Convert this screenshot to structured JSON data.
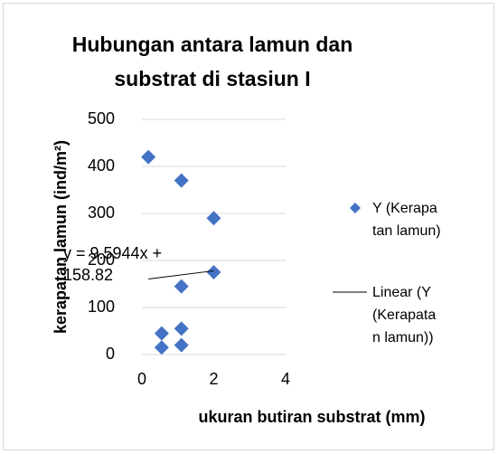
{
  "chart_data": {
    "type": "scatter",
    "title": "Hubungan antara lamun dan substrat di stasiun I",
    "xlabel": "ukuran butiran substrat (mm)",
    "ylabel": "kerapatan lamun (ind/m²)",
    "series": [
      {
        "name": "Y (Kerapatan lamun)",
        "color": "#4472c4",
        "x": [
          0.18,
          1.1,
          2,
          2,
          1.1,
          1.1,
          1.1,
          0.55,
          0.55
        ],
        "values": [
          420,
          370,
          290,
          175,
          145,
          55,
          20,
          45,
          15
        ]
      }
    ],
    "trendline": {
      "name": "Linear (Y (Kerapatan lamun))",
      "label": "y = 9.5944x + 158.82",
      "slope": 9.5944,
      "intercept": 158.82,
      "color": "#000000"
    },
    "xlim": [
      0,
      4
    ],
    "xticks": [
      0,
      2,
      4
    ],
    "ylim": [
      0,
      500
    ],
    "yticks": [
      0,
      100,
      200,
      300,
      400,
      500
    ],
    "grid": true,
    "legend": "right"
  }
}
